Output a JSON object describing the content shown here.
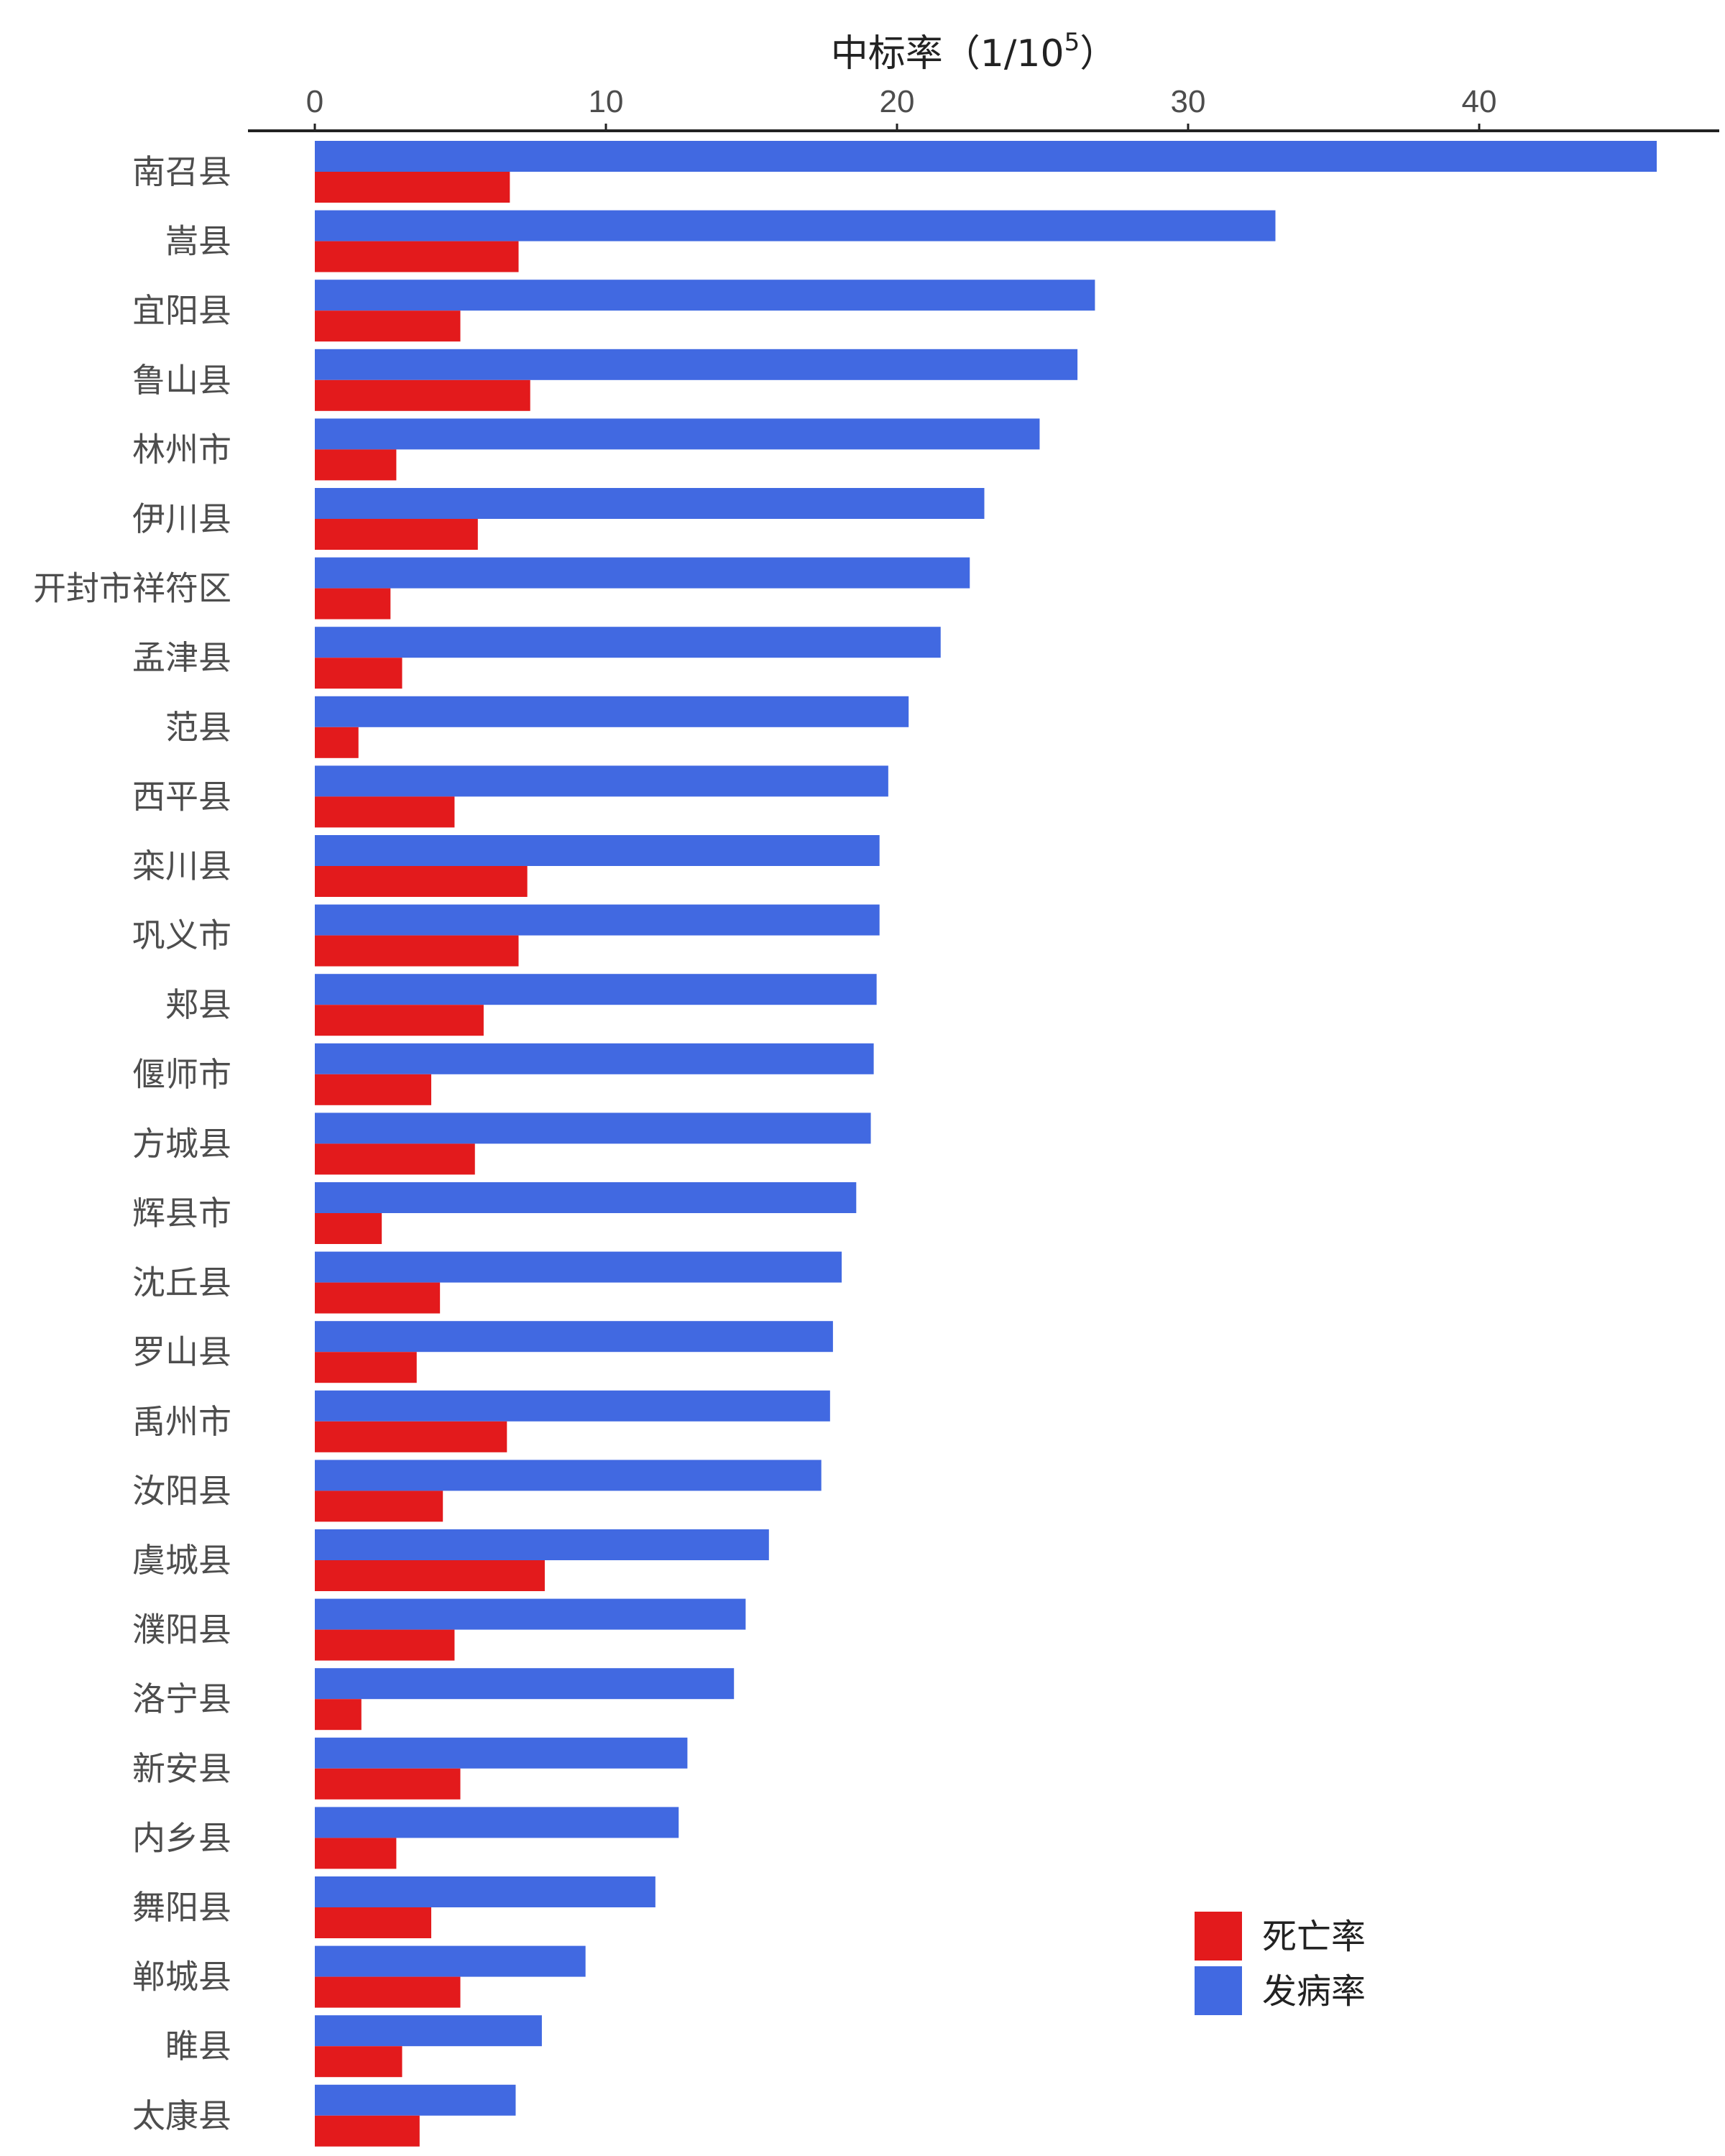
{
  "chart_data": {
    "type": "bar",
    "orientation": "horizontal",
    "xlabel": "中标率（1/10",
    "xlabel_superscript": "5",
    "xlabel_suffix": "）",
    "x_axis_position": "top",
    "xlim": [
      0,
      46
    ],
    "xticks": [
      0,
      10,
      20,
      30,
      40
    ],
    "grid": false,
    "legend_position": "bottom-right",
    "categories": [
      "南召县",
      "嵩县",
      "宜阳县",
      "鲁山县",
      "林州市",
      "伊川县",
      "开封市祥符区",
      "孟津县",
      "范县",
      "西平县",
      "栾川县",
      "巩义市",
      "郏县",
      "偃师市",
      "方城县",
      "辉县市",
      "沈丘县",
      "罗山县",
      "禹州市",
      "汝阳县",
      "虞城县",
      "濮阳县",
      "洛宁县",
      "新安县",
      "内乡县",
      "舞阳县",
      "郸城县",
      "睢县",
      "太康县"
    ],
    "series": [
      {
        "name": "发病率",
        "color": "#4169E1",
        "values": [
          46.1,
          33.0,
          26.8,
          26.2,
          24.9,
          23.0,
          22.5,
          21.5,
          20.4,
          19.7,
          19.4,
          19.4,
          19.3,
          19.2,
          19.1,
          18.6,
          18.1,
          17.8,
          17.7,
          17.4,
          15.6,
          14.8,
          14.4,
          12.8,
          12.5,
          11.7,
          9.3,
          7.8,
          6.9
        ]
      },
      {
        "name": "死亡率",
        "color": "#E31A1C",
        "values": [
          6.7,
          7.0,
          5.0,
          7.4,
          2.8,
          5.6,
          2.6,
          3.0,
          1.5,
          4.8,
          7.3,
          7.0,
          5.8,
          4.0,
          5.5,
          2.3,
          4.3,
          3.5,
          6.6,
          4.4,
          7.9,
          4.8,
          1.6,
          5.0,
          2.8,
          4.0,
          5.0,
          3.0,
          3.6
        ]
      }
    ],
    "legend_order": [
      "死亡率",
      "发病率"
    ]
  }
}
